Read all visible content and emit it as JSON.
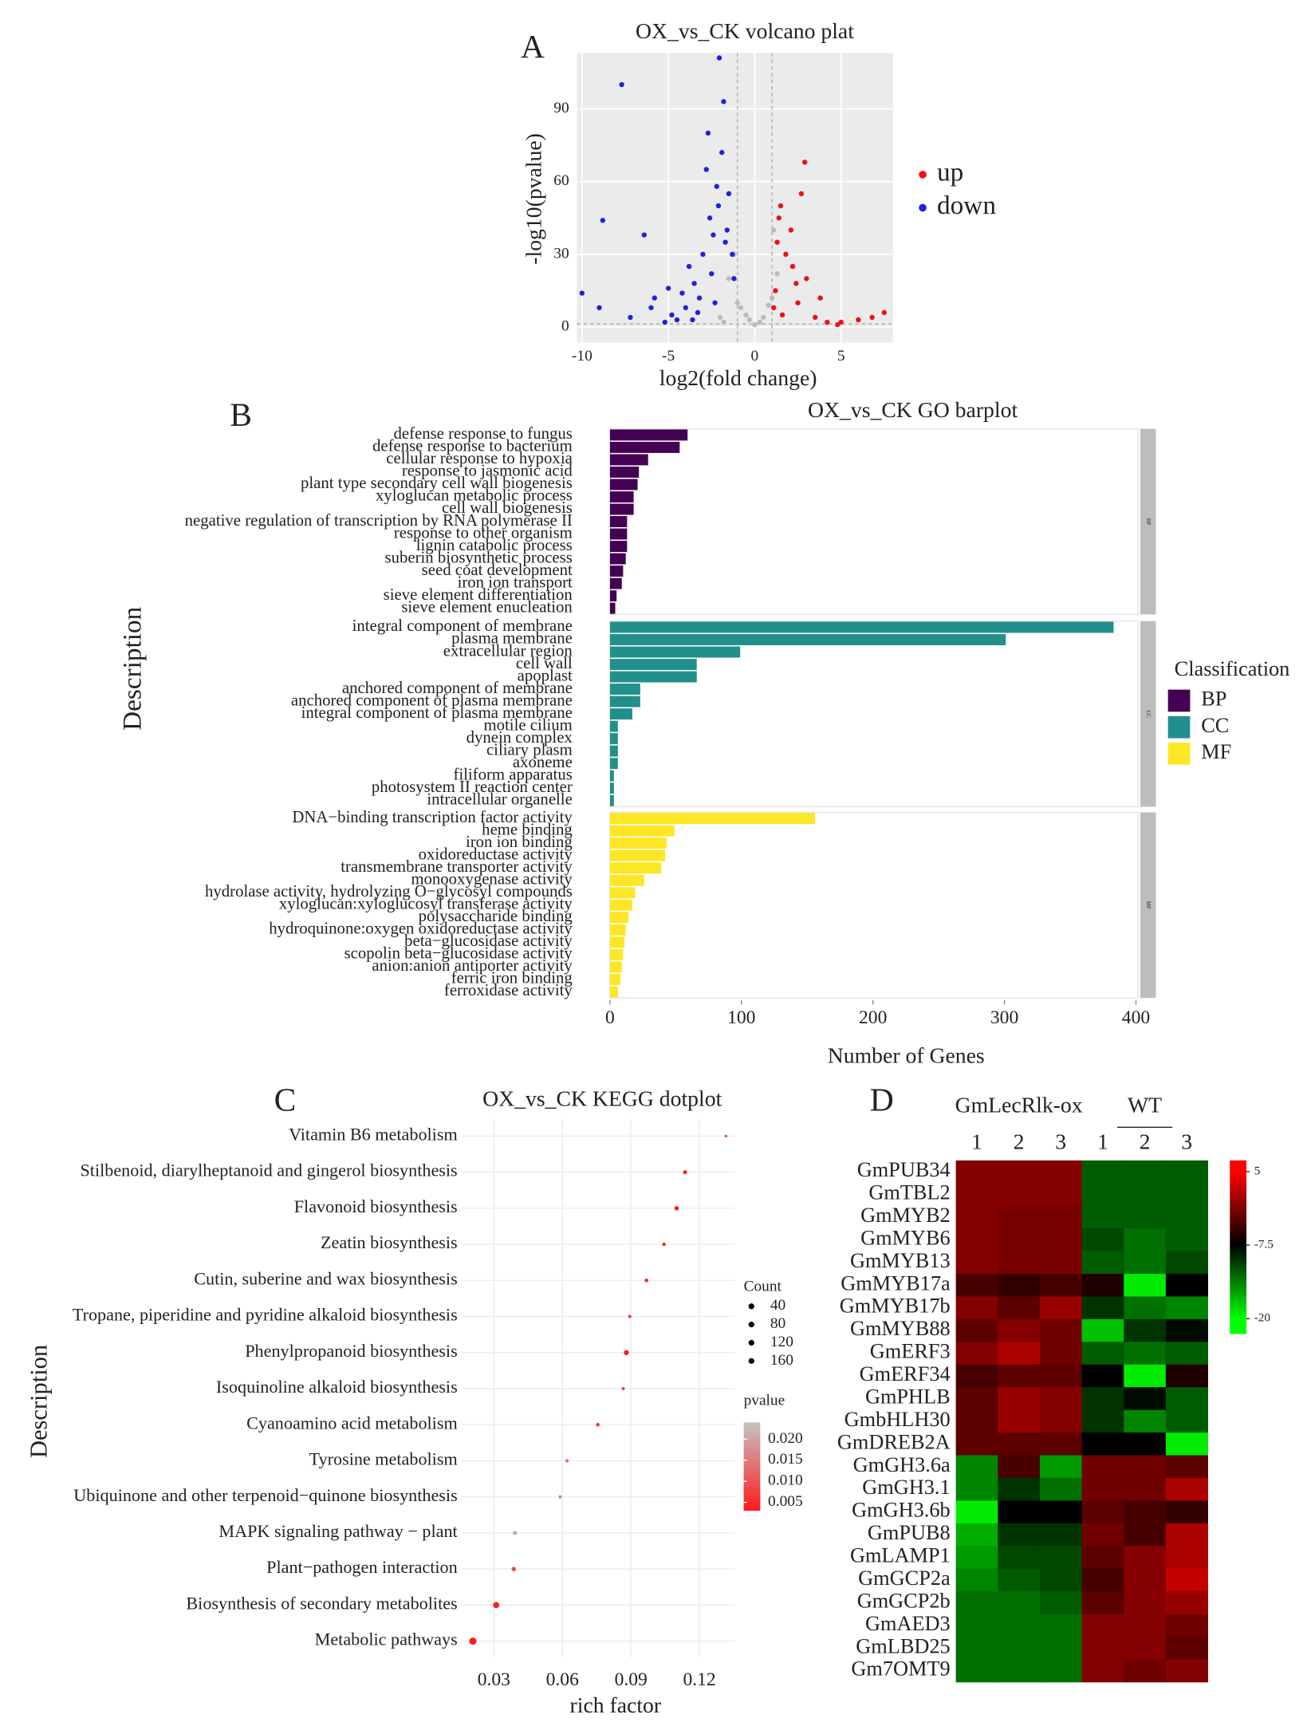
{
  "chart_data": [
    {
      "type": "scatter",
      "panel_label": "A",
      "title": "OX_vs_CK volcano plat",
      "xlabel": "log2(fold change)",
      "ylabel": "-log10(pvalue)",
      "xlim": [
        -10.3,
        8
      ],
      "ylim": [
        -6.4,
        113
      ],
      "xticks": [
        -10,
        -5,
        0,
        5
      ],
      "yticks": [
        0,
        30,
        60,
        90
      ],
      "grid": true,
      "threshold_x": [
        -1,
        1
      ],
      "threshold_y": 1.3,
      "series": [
        {
          "name": "up",
          "color": "#ee1111",
          "x": [
            2.9,
            1.5,
            2.1,
            7.5,
            5,
            3,
            1.2,
            1.8,
            2.5,
            3.5,
            4.2,
            6,
            1.4,
            2.2,
            1.1,
            3.8,
            2.7,
            1.6,
            4.8,
            6.8,
            1.3,
            2.4
          ],
          "y": [
            68,
            50,
            40,
            6,
            2,
            20,
            15,
            30,
            10,
            4,
            2,
            3,
            45,
            25,
            8,
            12,
            55,
            5,
            1,
            4,
            35,
            18
          ]
        },
        {
          "name": "down",
          "color": "#1f22dd",
          "x": [
            -7.7,
            -2.05,
            -1.8,
            -8.8,
            -6.4,
            -10,
            -9,
            -5.8,
            -7.2,
            -4.5,
            -3.5,
            -3,
            -2.6,
            -2.2,
            -2.8,
            -2.4,
            -3.2,
            -4,
            -4.8,
            -5.2,
            -3.8,
            -2.1,
            -1.6,
            -1.3,
            -1.9,
            -2.5,
            -3.3,
            -4.2,
            -1.5,
            -1.2,
            -2.7,
            -3.6,
            -6,
            -5,
            -2.3,
            -1.7
          ],
          "y": [
            100,
            111,
            93,
            44,
            38,
            14,
            8,
            12,
            4,
            3,
            18,
            30,
            45,
            58,
            65,
            38,
            12,
            8,
            5,
            2,
            25,
            50,
            40,
            30,
            72,
            22,
            6,
            14,
            55,
            20,
            80,
            3,
            8,
            16,
            10,
            35
          ]
        },
        {
          "color": "#bbbbbb",
          "x": [
            -1.5,
            -1,
            -0.5,
            0,
            0.5,
            1,
            1.3,
            -1.2,
            -0.8,
            0.8,
            -2,
            -1.8,
            -0.3,
            0.3,
            1.1
          ],
          "y": [
            20,
            10,
            5,
            1,
            4,
            12,
            22,
            30,
            8,
            9,
            4,
            2,
            3,
            2,
            40
          ]
        }
      ]
    },
    {
      "type": "bar",
      "orientation": "horizontal",
      "panel_label": "B",
      "title": "OX_vs_CK GO barplot",
      "xlabel": "Number of Genes",
      "ylabel": "Description",
      "legend_title": "Classification",
      "xlim": [
        0,
        400
      ],
      "xticks": [
        0,
        100,
        200,
        300,
        400
      ],
      "facets": [
        {
          "name": "BP",
          "color": "#440154",
          "categories": [
            "defense response to fungus",
            "defense response to bacterium",
            "cellular response to hypoxia",
            "response to jasmonic acid",
            "plant  type secondary cell wall biogenesis",
            "xyloglucan metabolic process",
            "cell wall biogenesis",
            "negative regulation of transcription by RNA polymerase II",
            "response to other organism",
            "lignin catabolic process",
            "suberin biosynthetic process",
            "seed coat development",
            "iron ion transport",
            "sieve element differentiation",
            "sieve element enucleation"
          ],
          "values": [
            59,
            53,
            29,
            22,
            21,
            18,
            18,
            13,
            13,
            13,
            12,
            10,
            9,
            5,
            4
          ]
        },
        {
          "name": "CC",
          "color": "#21908c",
          "categories": [
            "integral component of membrane",
            "plasma membrane",
            "extracellular region",
            "cell wall",
            "apoplast",
            "anchored component of membrane",
            "anchored component of plasma membrane",
            "integral component of plasma membrane",
            "motile cilium",
            "dynein complex",
            "ciliary plasm",
            "axoneme",
            "filiform apparatus",
            "photosystem II reaction center",
            "intracellular organelle"
          ],
          "values": [
            383,
            301,
            99,
            66,
            66,
            23,
            23,
            17,
            6,
            6,
            6,
            6,
            3,
            3,
            3
          ]
        },
        {
          "name": "MF",
          "color": "#fde725",
          "categories": [
            "DNA−binding transcription factor activity",
            "heme binding",
            "iron ion binding",
            "oxidoreductase activity",
            "transmembrane transporter activity",
            "monooxygenase activity",
            "hydrolase activity, hydrolyzing O−glycosyl compounds",
            "xyloglucan:xyloglucosyl transferase activity",
            "polysaccharide binding",
            "hydroquinone:oxygen oxidoreductase activity",
            "beta−glucosidase activity",
            "scopolin beta−glucosidase activity",
            "anion:anion antiporter activity",
            "ferric iron binding",
            "ferroxidase activity"
          ],
          "values": [
            156,
            49,
            43,
            42,
            39,
            26,
            19,
            17,
            14,
            12,
            11,
            10,
            9,
            8,
            6
          ]
        }
      ]
    },
    {
      "type": "dot",
      "panel_label": "C",
      "title": "OX_vs_CK KEGG dotplot",
      "xlabel": "rich factor",
      "ylabel": "Description",
      "categories": [
        "Vitamin B6 metabolism",
        "Stilbenoid, diarylheptanoid and gingerol biosynthesis",
        "Flavonoid biosynthesis",
        "Zeatin biosynthesis",
        "Cutin, suberine and wax biosynthesis",
        "Tropane, piperidine and pyridine alkaloid biosynthesis",
        "Phenylpropanoid biosynthesis",
        "Isoquinoline alkaloid biosynthesis",
        "Cyanoamino acid metabolism",
        "Tyrosine metabolism",
        "Ubiquinone and other terpenoid−quinone biosynthesis",
        "MAPK signaling pathway − plant",
        "Plant−pathogen interaction",
        "Biosynthesis of secondary metabolites",
        "Metabolic pathways"
      ],
      "values": [
        0.1316,
        0.1137,
        0.11,
        0.1045,
        0.0968,
        0.0895,
        0.088,
        0.0866,
        0.0755,
        0.062,
        0.059,
        0.0392,
        0.0387,
        0.031,
        0.0208
      ],
      "counts": [
        10,
        18,
        22,
        14,
        16,
        12,
        30,
        12,
        15,
        14,
        12,
        20,
        22,
        45,
        60
      ],
      "pvalues": [
        0.011,
        0.003,
        0.003,
        0.004,
        0.005,
        0.007,
        0.003,
        0.008,
        0.006,
        0.014,
        0.016,
        0.02,
        0.009,
        0.004,
        0.003
      ],
      "xlim": [
        0.016,
        0.1355
      ],
      "xticks": [
        0.03,
        0.06,
        0.09,
        0.12
      ],
      "size_title": "Count",
      "size_ticks": [
        40,
        80,
        120,
        160
      ],
      "color_title": "pvalue",
      "color_lim": [
        0.003,
        0.024
      ],
      "color_low": "#ff1a1a",
      "color_high": "#c4c4c4",
      "color_ticks": [
        {
          "value": 0.02,
          "label": "0.020"
        },
        {
          "value": 0.015,
          "label": "0.015"
        },
        {
          "value": 0.01,
          "label": "0.010"
        },
        {
          "value": 0.005,
          "label": "0.005"
        }
      ]
    },
    {
      "type": "heatmap",
      "panel_label": "D",
      "groups": [
        {
          "name": "GmLecRlk-ox",
          "columns": [
            "1",
            "2",
            "3"
          ]
        },
        {
          "name": "WT",
          "columns": [
            "1",
            "2",
            "3"
          ]
        }
      ],
      "rows": [
        "GmPUB34",
        "GmTBL2",
        "GmMYB2",
        "GmMYB6",
        "GmMYB13",
        "GmMYB17a",
        "GmMYB17b",
        "GmMYB88",
        "GmERF3",
        "GmERF34",
        "GmPHLB",
        "GmbHLH30",
        "GmDREB2A",
        "GmGH3.6a",
        "GmGH3.1",
        "GmGH3.6b",
        "GmPUB8",
        "GmLAMP1",
        "GmGCP2a",
        "GmGCP2b",
        "GmAED3",
        "GmLBD25",
        "Gm7OMT9"
      ],
      "values": [
        [
          -1,
          -1,
          -1,
          -12,
          -12,
          -12
        ],
        [
          -1,
          -1,
          -1,
          -12,
          -12,
          -12
        ],
        [
          -1,
          -1.5,
          -1.5,
          -12,
          -12,
          -12
        ],
        [
          -1,
          -1.5,
          -1.5,
          -11,
          -13,
          -12
        ],
        [
          -1,
          -1.5,
          -1.5,
          -12,
          -13,
          -11
        ],
        [
          -4,
          -5,
          -4,
          -6,
          -19,
          -7.5
        ],
        [
          -1,
          -3,
          0,
          -10,
          -13,
          -14
        ],
        [
          -3,
          -1,
          -2,
          -17,
          -10,
          -8
        ],
        [
          -1,
          1,
          -2,
          -12,
          -13,
          -12
        ],
        [
          -4,
          -3,
          -3,
          -7.5,
          -19,
          -6
        ],
        [
          -3,
          0,
          -1,
          -10,
          -8,
          -12
        ],
        [
          -3,
          0,
          -1,
          -10,
          -14,
          -12
        ],
        [
          -3,
          -3,
          -3,
          -7.5,
          -7.5,
          -19
        ],
        [
          -14,
          -4,
          -15,
          -2,
          -2,
          -3
        ],
        [
          -14,
          -10,
          -13,
          -2,
          -2,
          1
        ],
        [
          -19,
          -7.5,
          -7.5,
          -3,
          -4,
          -5
        ],
        [
          -16,
          -10,
          -10,
          -2,
          -4,
          1
        ],
        [
          -15,
          -11,
          -11,
          -3,
          -1,
          1
        ],
        [
          -14,
          -12,
          -11,
          -4,
          -1,
          2
        ],
        [
          -13,
          -13,
          -12,
          -3,
          -1,
          0
        ],
        [
          -13,
          -13,
          -13,
          -1,
          -1,
          -2
        ],
        [
          -13,
          -13,
          -13,
          -1,
          -1,
          -3
        ],
        [
          -13,
          -13,
          -13,
          -1,
          -2,
          -1
        ]
      ],
      "colorbar": {
        "lim": [
          -22.6,
          6.9
        ],
        "ticks": [
          5,
          -7.5,
          -20
        ],
        "colors": [
          "#ff0000",
          "#000000",
          "#00ff00"
        ]
      }
    }
  ]
}
